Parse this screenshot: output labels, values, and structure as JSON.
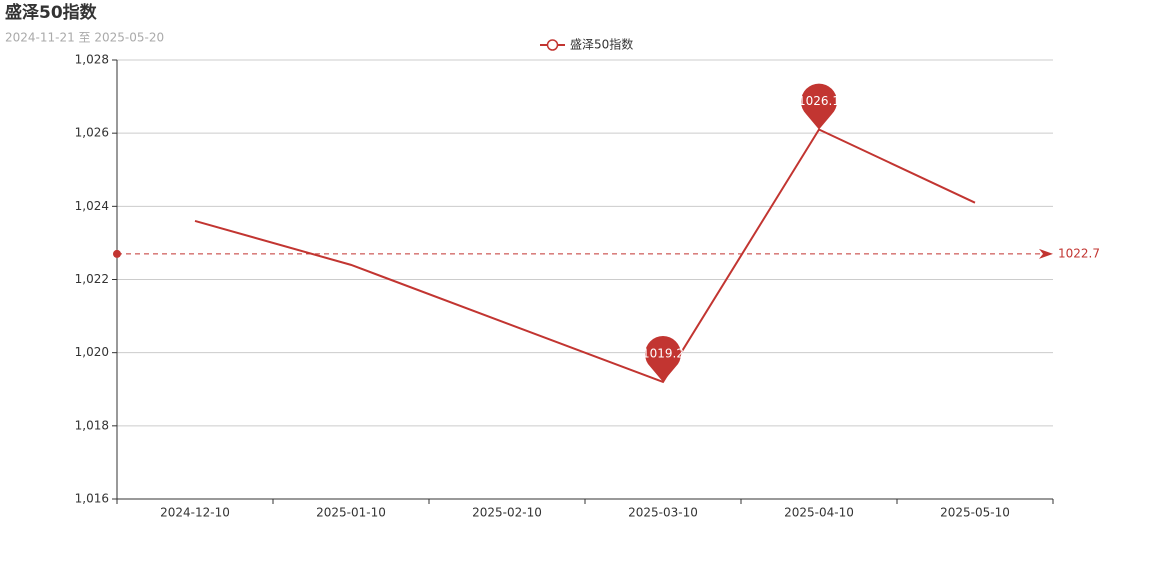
{
  "chart_data": {
    "type": "line",
    "title": "盛泽50指数",
    "subtitle": "2024-11-21 至 2025-05-20",
    "categories": [
      "2024-12-10",
      "2025-01-10",
      "2025-02-10",
      "2025-03-10",
      "2025-04-10",
      "2025-05-10"
    ],
    "series": [
      {
        "name": "盛泽50指数",
        "color": "#c23531",
        "values": [
          1023.6,
          1022.4,
          1020.8,
          1019.2,
          1026.1,
          1024.1
        ]
      }
    ],
    "mark_points": [
      1026.1,
      1019.2
    ],
    "mark_line": 1022.7,
    "ylim": [
      1016,
      1028
    ],
    "yticks": [
      {
        "value": 1016,
        "label": "1,016"
      },
      {
        "value": 1018,
        "label": "1,018"
      },
      {
        "value": 1020,
        "label": "1,020"
      },
      {
        "value": 1022,
        "label": "1,022"
      },
      {
        "value": 1024,
        "label": "1,024"
      },
      {
        "value": 1026,
        "label": "1,026"
      },
      {
        "value": 1028,
        "label": "1,028"
      }
    ],
    "grid": true
  }
}
